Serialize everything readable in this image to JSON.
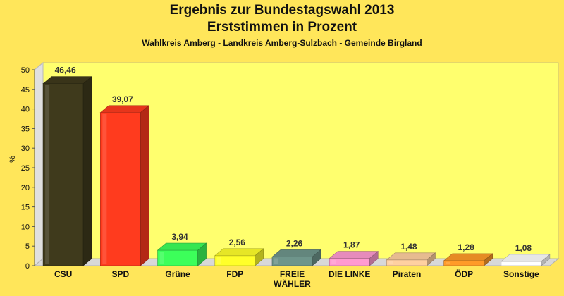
{
  "chart_data": {
    "type": "bar",
    "title": "Ergebnis zur Bundestagswahl 2013",
    "title2": "Erststimmen in Prozent",
    "subtitle": "Wahlkreis Amberg - Landkreis Amberg-Sulzbach - Gemeinde Birgland",
    "ylabel": "%",
    "xlabel": "",
    "ylim": [
      0,
      50
    ],
    "yticks": [
      "0",
      "5",
      "10",
      "15",
      "20",
      "25",
      "30",
      "35",
      "40",
      "45",
      "50"
    ],
    "grid": false,
    "categories": [
      [
        "CSU"
      ],
      [
        "SPD"
      ],
      [
        "Grüne"
      ],
      [
        "FDP"
      ],
      [
        "FREIE",
        "WÄHLER"
      ],
      [
        "DIE LINKE"
      ],
      [
        "Piraten"
      ],
      [
        "ÖDP"
      ],
      [
        "Sonstige"
      ]
    ],
    "values": [
      46.46,
      39.07,
      3.94,
      2.56,
      2.26,
      1.87,
      1.48,
      1.28,
      1.08
    ],
    "value_labels": [
      "46,46",
      "39,07",
      "3,94",
      "2,56",
      "2,26",
      "1,87",
      "1,48",
      "1,28",
      "1,08"
    ],
    "colors": [
      "#3f3a1c",
      "#ff3b1e",
      "#3cff5a",
      "#ffff2a",
      "#6e958b",
      "#ff9ad0",
      "#ffd0a0",
      "#ff9a28",
      "#ffffff"
    ]
  }
}
